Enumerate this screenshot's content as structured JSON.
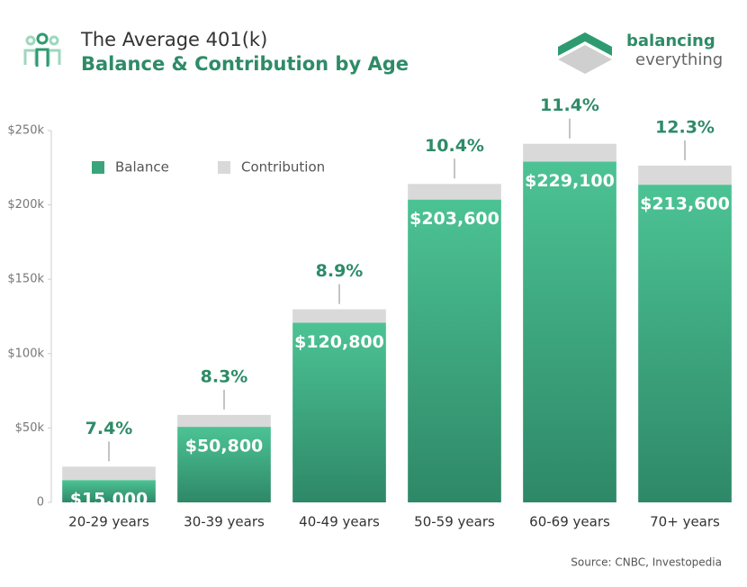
{
  "chart_data": {
    "type": "stacked_bar",
    "title": "The Average 401(k)",
    "subtitle": "Balance & Contribution by Age",
    "brand": [
      "balancing",
      "everything"
    ],
    "source": "Source: CNBC, Investopedia",
    "categories": [
      "20-29 years",
      "30-39 years",
      "40-49 years",
      "50-59 years",
      "60-69 years",
      "70+ years"
    ],
    "series": [
      {
        "name": "Balance",
        "color": "#3aa57c",
        "values": [
          15000,
          50800,
          120800,
          203600,
          229100,
          213600
        ],
        "value_labels": [
          "$15,000",
          "$50,800",
          "$120,800",
          "$203,600",
          "$229,100",
          "$213,600"
        ]
      },
      {
        "name": "Contribution",
        "color": "#d9d9d9",
        "values": [
          9000,
          8000,
          9000,
          10500,
          12000,
          12800
        ]
      }
    ],
    "annotations": [
      "7.4%",
      "8.3%",
      "8.9%",
      "10.4%",
      "11.4%",
      "12.3%"
    ],
    "ylim": [
      0,
      250000
    ],
    "yticks": [
      0,
      {
        "value": 50000,
        "label": "$50k"
      },
      {
        "value": 100000,
        "label": "$100k"
      },
      {
        "value": 150000,
        "label": "$150k"
      },
      {
        "value": 200000,
        "label": "$200k"
      },
      {
        "value": 250000,
        "label": "$250k"
      }
    ],
    "legend": "top-left"
  }
}
